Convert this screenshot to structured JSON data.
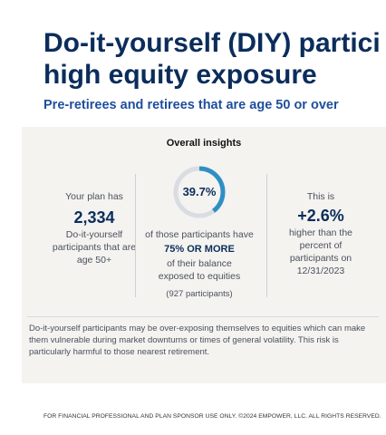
{
  "header": {
    "title_line1": "Do-it-yourself (DIY) partici",
    "title_line2": "high equity exposure",
    "subtitle": "Pre-retirees and retirees that are age 50 or over"
  },
  "panel": {
    "heading": "Overall insights",
    "left": {
      "intro": "Your plan has",
      "value": "2,334",
      "desc_line1": "Do-it-yourself",
      "desc_line2": "participants that are",
      "desc_line3": "age 50+"
    },
    "center": {
      "percent_label": "39.7%",
      "percent_value": 39.7,
      "line1": "of those participants have",
      "emphasis": "75% OR MORE",
      "line2": "of their balance",
      "line3": "exposed to equities",
      "count": "(927 participants)"
    },
    "right": {
      "intro": "This is",
      "value": "+2.6%",
      "line1": "higher than the",
      "line2": "percent of",
      "line3": "participants on",
      "line4": "12/31/2023"
    },
    "note": "Do-it-yourself participants may be over-exposing themselves to equities which can make them vulnerable during market downturns or times of general volatility. This risk is particularly harmful to those nearest retirement."
  },
  "footer": {
    "text": "FOR FINANCIAL PROFESSIONAL AND PLAN SPONSOR USE ONLY. ©2024 EMPOWER, LLC. ALL RIGHTS RESERVED."
  },
  "colors": {
    "title": "#0b2d5b",
    "subtitle": "#1f4e9c",
    "panel_bg": "#f4f3f0",
    "ring_fill": "#2f8fc4",
    "ring_track": "#d9dde3"
  }
}
